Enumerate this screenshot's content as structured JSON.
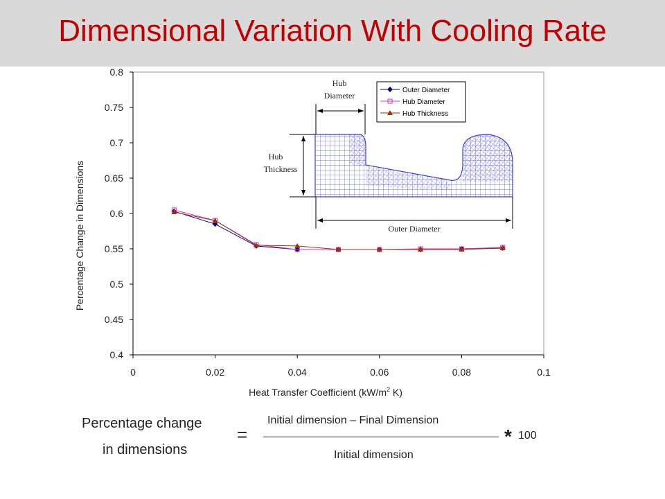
{
  "slide": {
    "title": "Dimensional Variation With Cooling Rate",
    "colors": {
      "title": "#c00000",
      "title_bar": "#d9d9d9",
      "mesh": "#4a4ae0"
    }
  },
  "chart_data": {
    "type": "line",
    "title": "",
    "xlabel_main": "Heat Transfer Coefficient (kW/m",
    "xlabel_sup": "2",
    "xlabel_tail": " K)",
    "ylabel": "Percentage Change in Dimensions",
    "xlim": [
      0,
      0.1
    ],
    "ylim": [
      0.4,
      0.8
    ],
    "x_ticks": [
      "0",
      "0.02",
      "0.04",
      "0.06",
      "0.08",
      "0.1"
    ],
    "y_ticks": [
      "0.4",
      "0.45",
      "0.5",
      "0.55",
      "0.6",
      "0.65",
      "0.7",
      "0.75",
      "0.8"
    ],
    "grid": false,
    "legend_position": "top-right",
    "series": [
      {
        "name": "Outer Diameter",
        "color": "#000080",
        "marker": "diamond",
        "x": [
          0.01,
          0.02,
          0.03,
          0.04,
          0.05,
          0.06,
          0.07,
          0.08,
          0.09
        ],
        "y": [
          0.603,
          0.585,
          0.554,
          0.549,
          0.549,
          0.549,
          0.549,
          0.55,
          0.551
        ]
      },
      {
        "name": "Hub Diameter",
        "color": "#cc33cc",
        "marker": "square",
        "x": [
          0.01,
          0.02,
          0.03,
          0.04,
          0.05,
          0.06,
          0.07,
          0.08,
          0.09
        ],
        "y": [
          0.605,
          0.59,
          0.556,
          0.549,
          0.549,
          0.549,
          0.55,
          0.55,
          0.552
        ]
      },
      {
        "name": "Hub Thickness",
        "color": "#993300",
        "marker": "triangle",
        "x": [
          0.01,
          0.02,
          0.03,
          0.04,
          0.05,
          0.06,
          0.07,
          0.08,
          0.09
        ],
        "y": [
          0.602,
          0.59,
          0.555,
          0.554,
          0.549,
          0.549,
          0.549,
          0.549,
          0.551
        ]
      }
    ]
  },
  "inset": {
    "hub_diameter": [
      "Hub",
      "Diameter"
    ],
    "hub_thickness": [
      "Hub",
      "Thickness"
    ],
    "outer_diameter": "Outer Diameter"
  },
  "formula": {
    "lhs_line1": "Percentage change",
    "lhs_line2": "in dimensions",
    "equals": "=",
    "numerator": "Initial dimension – Final Dimension",
    "denominator": "Initial dimension",
    "multiply": "*",
    "factor": "100"
  }
}
